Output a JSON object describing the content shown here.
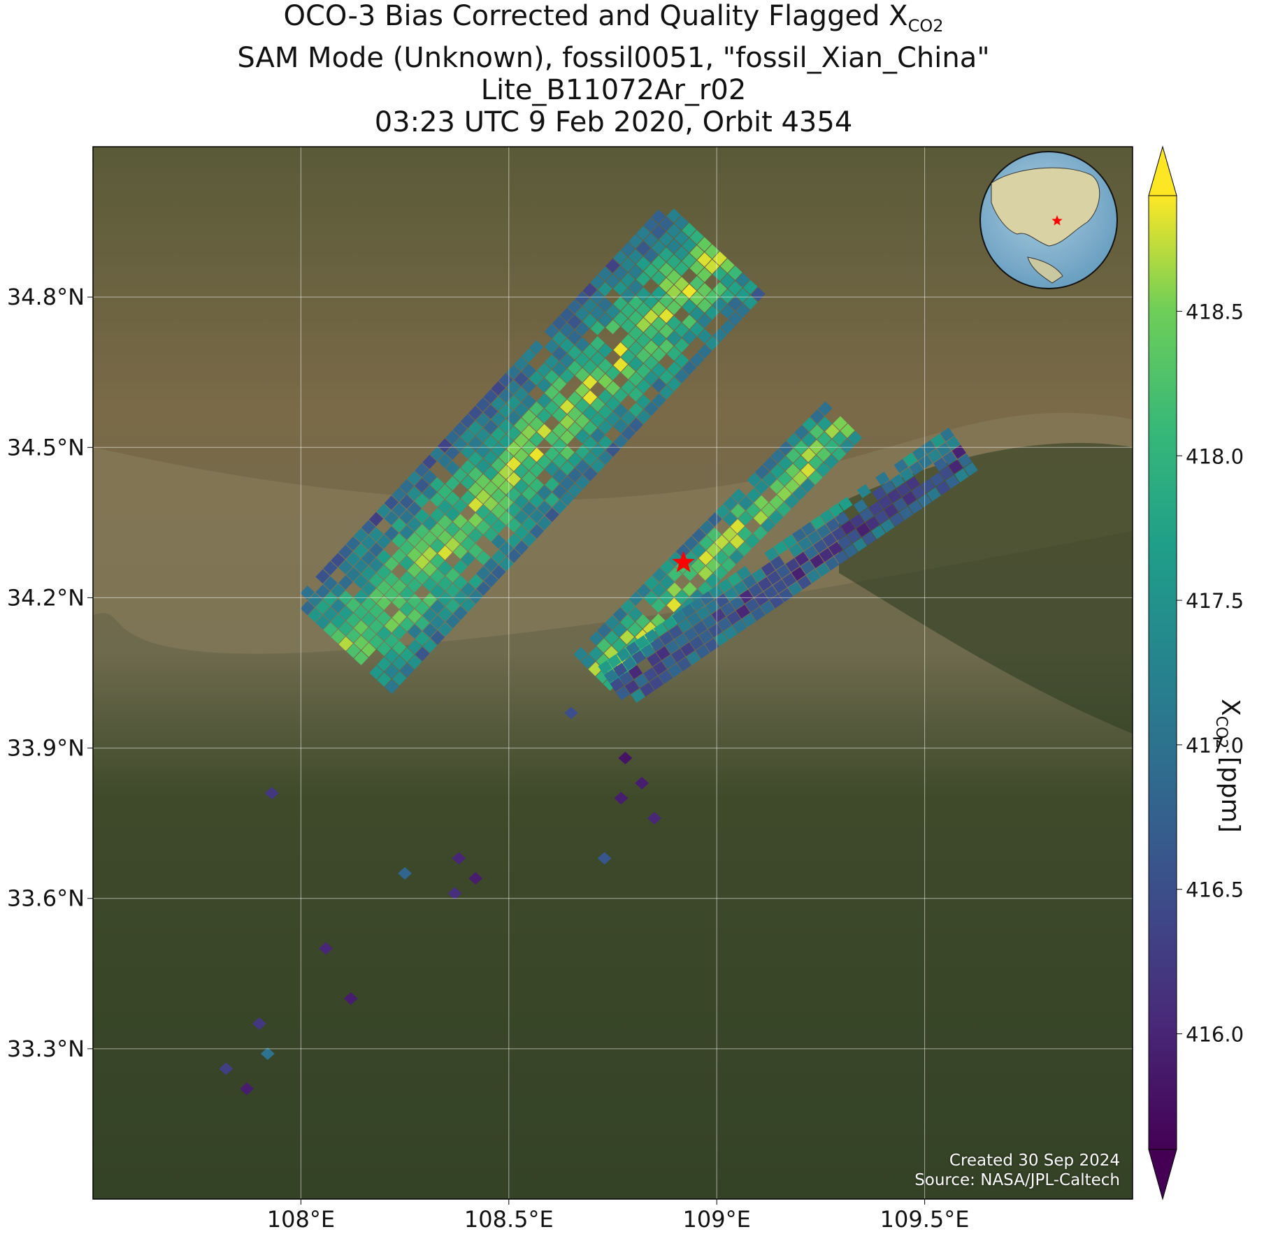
{
  "title": {
    "line1_main": "OCO-3 Bias Corrected and Quality Flagged X",
    "line1_sub": "CO2",
    "line2": "SAM Mode (Unknown), fossil0051, \"fossil_Xian_China\"",
    "line3": "Lite_B11072Ar_r02",
    "line4": "03:23 UTC 9 Feb 2020, Orbit 4354"
  },
  "map": {
    "lon_range": [
      107.5,
      110.0
    ],
    "lat_range": [
      33.0,
      35.1
    ],
    "x_ticks": [
      {
        "value": 108.0,
        "label": "108°E"
      },
      {
        "value": 108.5,
        "label": "108.5°E"
      },
      {
        "value": 109.0,
        "label": "109°E"
      },
      {
        "value": 109.5,
        "label": "109.5°E"
      }
    ],
    "y_ticks": [
      {
        "value": 34.8,
        "label": "34.8°N"
      },
      {
        "value": 34.5,
        "label": "34.5°N"
      },
      {
        "value": 34.2,
        "label": "34.2°N"
      },
      {
        "value": 33.9,
        "label": "33.9°N"
      },
      {
        "value": 33.6,
        "label": "33.6°N"
      },
      {
        "value": 33.3,
        "label": "33.3°N"
      }
    ],
    "grid": true,
    "target": {
      "lon": 108.92,
      "lat": 34.27,
      "marker": "star",
      "color": "#ff0000"
    },
    "inset_globe": {
      "position": "top-right",
      "marker": "star"
    },
    "credit_line1": "Created 30 Sep 2024",
    "credit_line2": "Source: NASA/JPL-Caltech"
  },
  "colorbar": {
    "cmap": "viridis",
    "range": [
      415.6,
      418.9
    ],
    "extend": "both",
    "ticks": [
      {
        "value": 416.0,
        "label": "416.0"
      },
      {
        "value": 416.5,
        "label": "416.5"
      },
      {
        "value": 417.0,
        "label": "417.0"
      },
      {
        "value": 417.5,
        "label": "417.5"
      },
      {
        "value": 418.0,
        "label": "418.0"
      },
      {
        "value": 418.5,
        "label": "418.5"
      }
    ],
    "label_main": "X",
    "label_sub": "CO2",
    "label_unit": " [ppm]"
  },
  "chart_data": {
    "type": "heatmap",
    "x_units": "longitude °E",
    "y_units": "latitude °N",
    "value_units": "ppm",
    "swaths": [
      {
        "from": [
          108.1,
          34.1
        ],
        "to": [
          109.0,
          34.9
        ],
        "center_value": 418.5,
        "edge_value": 416.8
      },
      {
        "from": [
          108.7,
          34.05
        ],
        "to": [
          109.3,
          34.55
        ],
        "center_value": 418.6,
        "edge_value": 417.2
      },
      {
        "from": [
          108.75,
          34.02
        ],
        "to": [
          109.6,
          34.5
        ],
        "center_value": 416.2,
        "edge_value": 417.3
      }
    ],
    "scattered_points": [
      {
        "lon": 107.93,
        "lat": 33.81,
        "value": 416.2
      },
      {
        "lon": 108.25,
        "lat": 33.65,
        "value": 416.8
      },
      {
        "lon": 108.38,
        "lat": 33.68,
        "value": 416.0
      },
      {
        "lon": 108.37,
        "lat": 33.61,
        "value": 416.1
      },
      {
        "lon": 108.42,
        "lat": 33.64,
        "value": 415.9
      },
      {
        "lon": 108.06,
        "lat": 33.5,
        "value": 416.0
      },
      {
        "lon": 108.12,
        "lat": 33.4,
        "value": 415.9
      },
      {
        "lon": 107.9,
        "lat": 33.35,
        "value": 416.2
      },
      {
        "lon": 107.92,
        "lat": 33.29,
        "value": 417.0
      },
      {
        "lon": 107.82,
        "lat": 33.26,
        "value": 416.3
      },
      {
        "lon": 107.87,
        "lat": 33.22,
        "value": 415.9
      },
      {
        "lon": 108.78,
        "lat": 33.88,
        "value": 415.8
      },
      {
        "lon": 108.82,
        "lat": 33.83,
        "value": 415.9
      },
      {
        "lon": 108.77,
        "lat": 33.8,
        "value": 415.9
      },
      {
        "lon": 108.85,
        "lat": 33.76,
        "value": 416.0
      },
      {
        "lon": 108.73,
        "lat": 33.68,
        "value": 416.6
      },
      {
        "lon": 108.65,
        "lat": 33.97,
        "value": 416.5
      }
    ]
  }
}
